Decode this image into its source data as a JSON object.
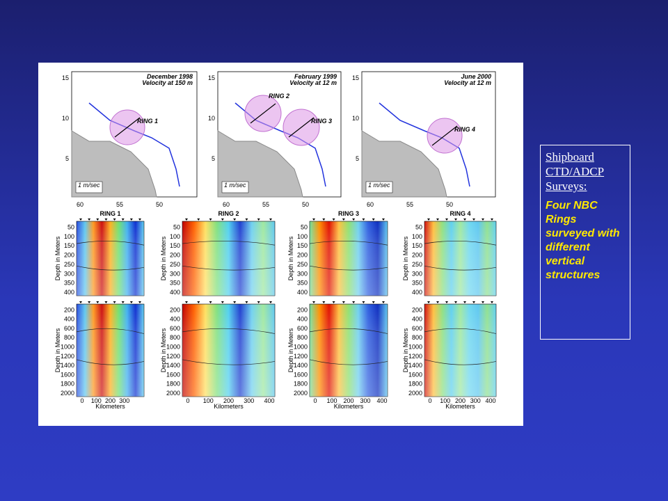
{
  "maps": [
    {
      "title": "December 1998",
      "subtitle": "Velocity at 150 m",
      "rings": [
        "RING 1"
      ],
      "scale": "1 m/sec"
    },
    {
      "title": "February 1999",
      "subtitle": "Velocity at 12 m",
      "rings": [
        "RING 2",
        "RING 3"
      ],
      "scale": "1 m/sec"
    },
    {
      "title": "June 2000",
      "subtitle": "Velocity at 12 m",
      "rings": [
        "RING 4"
      ],
      "scale": "1 m/sec"
    }
  ],
  "map_yticks": [
    "15",
    "10",
    "5"
  ],
  "map_xticks": [
    "60",
    "55",
    "50"
  ],
  "sections": [
    {
      "title": "RING 1",
      "xticks": [
        "0",
        "100",
        "200",
        "300"
      ]
    },
    {
      "title": "RING 2",
      "xticks": [
        "0",
        "100",
        "200",
        "300",
        "400"
      ]
    },
    {
      "title": "RING 3",
      "xticks": [
        "0",
        "100",
        "200",
        "300",
        "400"
      ]
    },
    {
      "title": "RING 4",
      "xticks": [
        "0",
        "100",
        "200",
        "300",
        "400"
      ]
    }
  ],
  "upper_yticks": [
    "50",
    "100",
    "150",
    "200",
    "250",
    "300",
    "350",
    "400"
  ],
  "lower_yticks": [
    "200",
    "400",
    "600",
    "800",
    "1000",
    "1200",
    "1400",
    "1600",
    "1800",
    "2000"
  ],
  "ylabel": "Depth in Meters",
  "xlabel": "Kilometers",
  "sidebar": {
    "heading": "Shipboard CTD/ADCP Surveys:",
    "body": "Four NBC Rings surveyed with different vertical structures"
  }
}
